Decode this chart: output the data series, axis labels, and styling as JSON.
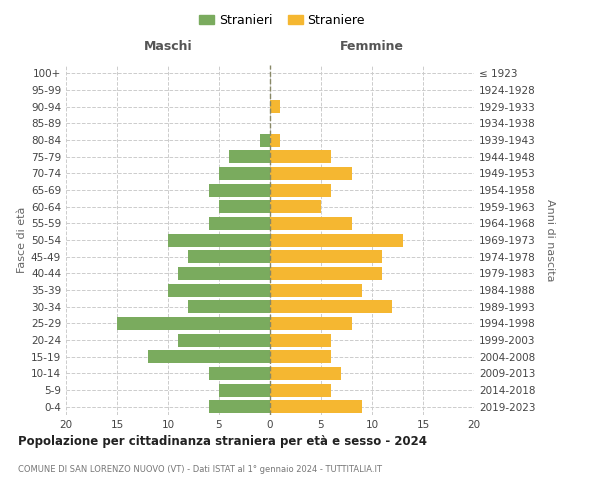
{
  "age_groups": [
    "0-4",
    "5-9",
    "10-14",
    "15-19",
    "20-24",
    "25-29",
    "30-34",
    "35-39",
    "40-44",
    "45-49",
    "50-54",
    "55-59",
    "60-64",
    "65-69",
    "70-74",
    "75-79",
    "80-84",
    "85-89",
    "90-94",
    "95-99",
    "100+"
  ],
  "birth_years": [
    "2019-2023",
    "2014-2018",
    "2009-2013",
    "2004-2008",
    "1999-2003",
    "1994-1998",
    "1989-1993",
    "1984-1988",
    "1979-1983",
    "1974-1978",
    "1969-1973",
    "1964-1968",
    "1959-1963",
    "1954-1958",
    "1949-1953",
    "1944-1948",
    "1939-1943",
    "1934-1938",
    "1929-1933",
    "1924-1928",
    "≤ 1923"
  ],
  "maschi": [
    6,
    5,
    6,
    12,
    9,
    15,
    8,
    10,
    9,
    8,
    10,
    6,
    5,
    6,
    5,
    4,
    1,
    0,
    0,
    0,
    0
  ],
  "femmine": [
    9,
    6,
    7,
    6,
    6,
    8,
    12,
    9,
    11,
    11,
    13,
    8,
    5,
    6,
    8,
    6,
    1,
    0,
    1,
    0,
    0
  ],
  "color_maschi": "#7aab5e",
  "color_femmine": "#f5b731",
  "title": "Popolazione per cittadinanza straniera per età e sesso - 2024",
  "subtitle": "COMUNE DI SAN LORENZO NUOVO (VT) - Dati ISTAT al 1° gennaio 2024 - TUTTITALIA.IT",
  "label_left": "Maschi",
  "label_right": "Femmine",
  "ylabel_left": "Fasce di età",
  "ylabel_right": "Anni di nascita",
  "legend_maschi": "Stranieri",
  "legend_femmine": "Straniere",
  "xlim": 20,
  "xticks": [
    -20,
    -15,
    -10,
    -5,
    0,
    5,
    10,
    15,
    20
  ],
  "background_color": "#ffffff",
  "grid_color": "#cccccc",
  "bar_height": 0.78
}
